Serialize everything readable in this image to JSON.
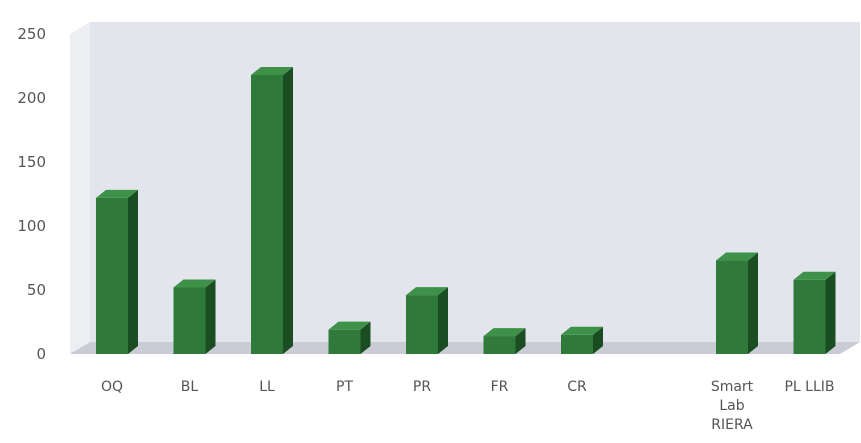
{
  "chart_data": {
    "type": "bar",
    "title": "",
    "xlabel": "",
    "ylabel": "",
    "ylim": [
      0,
      250
    ],
    "yticks": [
      0,
      50,
      100,
      150,
      200,
      250
    ],
    "categories": [
      [
        "OQ"
      ],
      [
        "BL"
      ],
      [
        "LL"
      ],
      [
        "PT"
      ],
      [
        "PR"
      ],
      [
        "FR"
      ],
      [
        "CR"
      ],
      [
        ""
      ],
      [
        "Smart",
        "Lab",
        "RIERA"
      ],
      [
        "PL LLIB"
      ]
    ],
    "values": [
      122,
      52,
      218,
      19,
      46,
      14,
      15,
      null,
      73,
      58
    ],
    "grid": false,
    "legend": "none",
    "style": "3d",
    "colors": {
      "bar_front": "#2f7a3a",
      "bar_side": "#1b4d22",
      "bar_top": "#3e9149",
      "wall": "#e2e5ec",
      "floor": "#c9ccd4",
      "text": "#555555"
    }
  }
}
